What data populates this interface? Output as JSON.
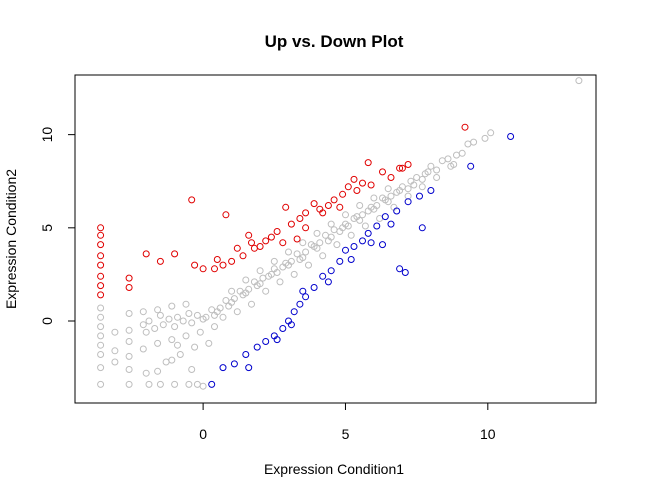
{
  "chart_data": {
    "type": "scatter",
    "title": "Up vs. Down Plot",
    "xlabel": "Expression Condition1",
    "ylabel": "Expression Condition2",
    "xlim": [
      -4.5,
      13.8
    ],
    "ylim": [
      -4.4,
      13.2
    ],
    "x_ticks": [
      0,
      5,
      10
    ],
    "y_ticks": [
      0,
      5,
      10
    ],
    "grid": false,
    "series": [
      {
        "color": "#bebebe",
        "points": [
          [
            13.2,
            12.9
          ],
          [
            10.1,
            10.1
          ],
          [
            9.9,
            9.8
          ],
          [
            9.5,
            9.6
          ],
          [
            9.3,
            9.5
          ],
          [
            9.1,
            9.0
          ],
          [
            8.9,
            8.9
          ],
          [
            8.6,
            8.7
          ],
          [
            8.8,
            8.4
          ],
          [
            8.4,
            8.6
          ],
          [
            8.2,
            8.1
          ],
          [
            8.0,
            8.3
          ],
          [
            7.8,
            7.9
          ],
          [
            7.7,
            7.6
          ],
          [
            7.5,
            7.7
          ],
          [
            7.3,
            7.5
          ],
          [
            7.2,
            7.1
          ],
          [
            7.0,
            7.2
          ],
          [
            6.8,
            6.9
          ],
          [
            6.6,
            6.7
          ],
          [
            6.5,
            6.4
          ],
          [
            6.3,
            6.6
          ],
          [
            6.1,
            6.2
          ],
          [
            6.0,
            6.0
          ],
          [
            5.8,
            5.9
          ],
          [
            5.6,
            5.7
          ],
          [
            5.5,
            5.4
          ],
          [
            5.3,
            5.5
          ],
          [
            5.1,
            5.1
          ],
          [
            5.0,
            5.2
          ],
          [
            4.8,
            4.8
          ],
          [
            4.6,
            4.9
          ],
          [
            4.5,
            4.5
          ],
          [
            4.3,
            4.6
          ],
          [
            4.1,
            4.2
          ],
          [
            4.0,
            3.9
          ],
          [
            3.8,
            4.1
          ],
          [
            3.6,
            3.7
          ],
          [
            3.5,
            3.4
          ],
          [
            3.3,
            3.6
          ],
          [
            3.1,
            3.2
          ],
          [
            3.0,
            3.0
          ],
          [
            2.8,
            2.9
          ],
          [
            2.6,
            2.6
          ],
          [
            2.5,
            2.8
          ],
          [
            2.3,
            2.4
          ],
          [
            2.1,
            2.3
          ],
          [
            2.0,
            2.0
          ],
          [
            1.8,
            2.1
          ],
          [
            1.6,
            1.7
          ],
          [
            1.5,
            1.5
          ],
          [
            1.3,
            1.6
          ],
          [
            1.1,
            1.2
          ],
          [
            1.0,
            1.0
          ],
          [
            0.8,
            1.1
          ],
          [
            0.6,
            0.7
          ],
          [
            0.5,
            0.5
          ],
          [
            0.3,
            0.6
          ],
          [
            0.1,
            0.2
          ],
          [
            0.0,
            0.1
          ],
          [
            -0.2,
            0.3
          ],
          [
            -0.4,
            -0.1
          ],
          [
            -0.5,
            0.4
          ],
          [
            -0.7,
            0.0
          ],
          [
            -0.9,
            0.2
          ],
          [
            -1.0,
            -0.3
          ],
          [
            -1.2,
            0.1
          ],
          [
            -1.4,
            -0.2
          ],
          [
            -1.5,
            0.3
          ],
          [
            -1.7,
            -0.4
          ],
          [
            -1.9,
            0.0
          ],
          [
            -2.0,
            -0.6
          ],
          [
            7.9,
            8.0
          ],
          [
            7.4,
            7.3
          ],
          [
            6.9,
            7.0
          ],
          [
            6.4,
            6.5
          ],
          [
            5.9,
            6.1
          ],
          [
            5.4,
            5.6
          ],
          [
            4.9,
            5.0
          ],
          [
            4.4,
            4.3
          ],
          [
            3.9,
            4.0
          ],
          [
            3.4,
            3.3
          ],
          [
            2.9,
            3.1
          ],
          [
            2.4,
            2.5
          ],
          [
            1.9,
            1.9
          ],
          [
            1.4,
            1.4
          ],
          [
            0.9,
            0.8
          ],
          [
            0.4,
            0.3
          ],
          [
            -0.6,
            -0.8
          ],
          [
            -1.1,
            -1.0
          ],
          [
            -1.6,
            -1.2
          ],
          [
            -2.1,
            -1.5
          ],
          [
            -2.6,
            -1.9
          ],
          [
            -3.1,
            -2.2
          ],
          [
            -3.6,
            -2.5
          ],
          [
            -3.6,
            -3.4
          ],
          [
            -2.6,
            -3.4
          ],
          [
            -1.9,
            -3.4
          ],
          [
            -1.5,
            -3.4
          ],
          [
            -1.0,
            -3.4
          ],
          [
            -0.5,
            -3.4
          ],
          [
            -0.2,
            -3.4
          ],
          [
            0.0,
            -3.5
          ],
          [
            -3.6,
            -0.3
          ],
          [
            -3.6,
            -0.8
          ],
          [
            -3.6,
            -1.3
          ],
          [
            -3.6,
            -1.8
          ],
          [
            -3.6,
            0.2
          ],
          [
            -3.6,
            0.7
          ],
          [
            -2.6,
            0.4
          ],
          [
            -2.6,
            -0.5
          ],
          [
            -2.6,
            -1.1
          ],
          [
            -2.1,
            0.5
          ],
          [
            -2.1,
            -0.2
          ],
          [
            -1.6,
            0.6
          ],
          [
            -1.1,
            0.8
          ],
          [
            -0.6,
            0.9
          ],
          [
            -0.3,
            -1.4
          ],
          [
            -0.8,
            -1.8
          ],
          [
            -1.3,
            -2.2
          ],
          [
            -2.0,
            -2.8
          ],
          [
            -0.4,
            -2.6
          ],
          [
            0.2,
            -1.2
          ],
          [
            0.7,
            0.2
          ],
          [
            1.2,
            0.5
          ],
          [
            1.7,
            0.9
          ],
          [
            2.2,
            1.6
          ],
          [
            2.7,
            2.1
          ],
          [
            3.2,
            2.5
          ],
          [
            3.7,
            3.0
          ],
          [
            4.2,
            3.5
          ],
          [
            4.7,
            4.1
          ],
          [
            5.2,
            4.6
          ],
          [
            5.7,
            5.1
          ],
          [
            6.2,
            5.5
          ],
          [
            6.7,
            6.1
          ],
          [
            7.2,
            6.7
          ],
          [
            7.7,
            7.2
          ],
          [
            8.2,
            7.7
          ],
          [
            8.7,
            8.3
          ],
          [
            1.0,
            1.6
          ],
          [
            1.5,
            2.2
          ],
          [
            2.0,
            2.7
          ],
          [
            2.5,
            3.2
          ],
          [
            3.0,
            3.7
          ],
          [
            3.5,
            4.2
          ],
          [
            4.0,
            4.7
          ],
          [
            4.5,
            5.2
          ],
          [
            5.0,
            5.7
          ],
          [
            5.5,
            6.2
          ],
          [
            6.0,
            6.6
          ],
          [
            6.5,
            7.1
          ],
          [
            -3.1,
            -0.6
          ],
          [
            -3.1,
            -1.6
          ],
          [
            -2.6,
            -2.6
          ],
          [
            -1.6,
            -2.7
          ],
          [
            -1.1,
            -2.1
          ],
          [
            -0.9,
            -1.3
          ],
          [
            -0.1,
            -0.6
          ],
          [
            0.4,
            -0.3
          ]
        ]
      },
      {
        "color": "#e00000",
        "points": [
          [
            9.2,
            10.4
          ],
          [
            7.2,
            8.4
          ],
          [
            6.9,
            8.2
          ],
          [
            6.3,
            8.0
          ],
          [
            5.8,
            8.5
          ],
          [
            5.6,
            7.4
          ],
          [
            5.3,
            7.6
          ],
          [
            5.1,
            7.2
          ],
          [
            4.9,
            6.8
          ],
          [
            4.6,
            6.5
          ],
          [
            4.4,
            6.2
          ],
          [
            4.1,
            6.0
          ],
          [
            3.9,
            6.3
          ],
          [
            3.6,
            5.8
          ],
          [
            3.4,
            5.5
          ],
          [
            3.1,
            5.2
          ],
          [
            2.9,
            6.1
          ],
          [
            2.6,
            4.8
          ],
          [
            2.4,
            4.5
          ],
          [
            2.2,
            4.3
          ],
          [
            2.0,
            4.0
          ],
          [
            1.8,
            3.9
          ],
          [
            1.6,
            4.6
          ],
          [
            1.4,
            3.5
          ],
          [
            1.2,
            3.9
          ],
          [
            1.0,
            3.2
          ],
          [
            0.7,
            3.0
          ],
          [
            0.5,
            3.3
          ],
          [
            0.4,
            2.8
          ],
          [
            0.0,
            2.8
          ],
          [
            -0.3,
            3.0
          ],
          [
            -1.0,
            3.6
          ],
          [
            -1.5,
            3.2
          ],
          [
            -2.0,
            3.6
          ],
          [
            -2.6,
            2.3
          ],
          [
            -2.6,
            1.8
          ],
          [
            -3.6,
            5.0
          ],
          [
            -3.6,
            4.6
          ],
          [
            -3.6,
            4.1
          ],
          [
            -3.6,
            3.5
          ],
          [
            -3.6,
            3.0
          ],
          [
            -3.6,
            2.4
          ],
          [
            -3.6,
            1.9
          ],
          [
            -3.6,
            1.4
          ],
          [
            -0.4,
            6.5
          ],
          [
            0.8,
            5.7
          ],
          [
            1.7,
            4.2
          ],
          [
            2.8,
            4.2
          ],
          [
            3.3,
            4.4
          ],
          [
            3.6,
            5.0
          ],
          [
            4.2,
            5.8
          ],
          [
            4.8,
            6.1
          ],
          [
            5.4,
            7.0
          ],
          [
            5.9,
            7.3
          ],
          [
            6.6,
            7.7
          ],
          [
            7.0,
            8.2
          ]
        ]
      },
      {
        "color": "#0000cc",
        "points": [
          [
            10.8,
            9.9
          ],
          [
            9.4,
            8.3
          ],
          [
            8.0,
            7.0
          ],
          [
            7.6,
            6.7
          ],
          [
            7.2,
            6.4
          ],
          [
            6.8,
            5.9
          ],
          [
            6.4,
            5.6
          ],
          [
            6.1,
            5.1
          ],
          [
            5.8,
            4.7
          ],
          [
            5.6,
            4.3
          ],
          [
            5.3,
            4.0
          ],
          [
            5.0,
            3.8
          ],
          [
            4.8,
            3.2
          ],
          [
            4.5,
            2.7
          ],
          [
            4.2,
            2.4
          ],
          [
            3.9,
            1.8
          ],
          [
            3.6,
            1.3
          ],
          [
            3.4,
            0.9
          ],
          [
            3.2,
            0.5
          ],
          [
            3.0,
            0.0
          ],
          [
            2.8,
            -0.4
          ],
          [
            2.5,
            -0.8
          ],
          [
            2.2,
            -1.1
          ],
          [
            1.9,
            -1.4
          ],
          [
            1.5,
            -1.8
          ],
          [
            1.1,
            -2.3
          ],
          [
            0.7,
            -2.5
          ],
          [
            0.3,
            -3.4
          ],
          [
            6.9,
            2.8
          ],
          [
            7.1,
            2.6
          ],
          [
            6.3,
            4.1
          ],
          [
            5.2,
            3.3
          ],
          [
            4.4,
            2.1
          ],
          [
            3.5,
            1.6
          ],
          [
            3.1,
            -0.2
          ],
          [
            2.6,
            -1.0
          ],
          [
            1.6,
            -2.5
          ],
          [
            5.9,
            4.2
          ],
          [
            7.7,
            5.0
          ],
          [
            6.6,
            5.2
          ]
        ]
      }
    ]
  }
}
